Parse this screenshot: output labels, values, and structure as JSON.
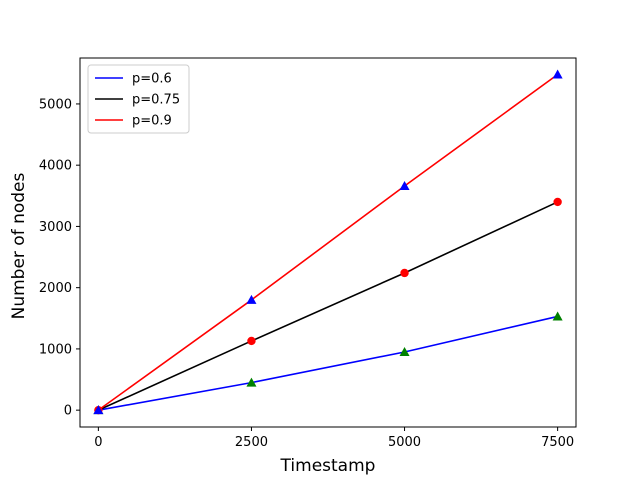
{
  "chart_data": {
    "type": "line",
    "title": "",
    "xlabel": "Timestamp",
    "ylabel": "Number of nodes",
    "xlim": [
      -300,
      7800
    ],
    "ylim": [
      -275,
      5750
    ],
    "xticks": [
      0,
      2500,
      5000,
      7500
    ],
    "xtick_labels": [
      "0",
      "2500",
      "5000",
      "7500"
    ],
    "yticks": [
      0,
      1000,
      2000,
      3000,
      4000,
      5000
    ],
    "ytick_labels": [
      "0",
      "1000",
      "2000",
      "3000",
      "4000",
      "5000"
    ],
    "grid": false,
    "legend_position": "top-left",
    "x": [
      0,
      2500,
      5000,
      7500
    ],
    "series": [
      {
        "name": "p=0.6",
        "color": "#0000ff",
        "values": [
          0,
          450,
          950,
          1530
        ],
        "marker": "triangle",
        "marker_color": "#008000"
      },
      {
        "name": "p=0.75",
        "color": "#000000",
        "values": [
          0,
          1130,
          2240,
          3400
        ],
        "marker": "circle",
        "marker_color": "#ff0000"
      },
      {
        "name": "p=0.9",
        "color": "#ff0000",
        "values": [
          0,
          1800,
          3660,
          5480
        ],
        "marker": "triangle",
        "marker_color": "#0000ff"
      }
    ]
  }
}
